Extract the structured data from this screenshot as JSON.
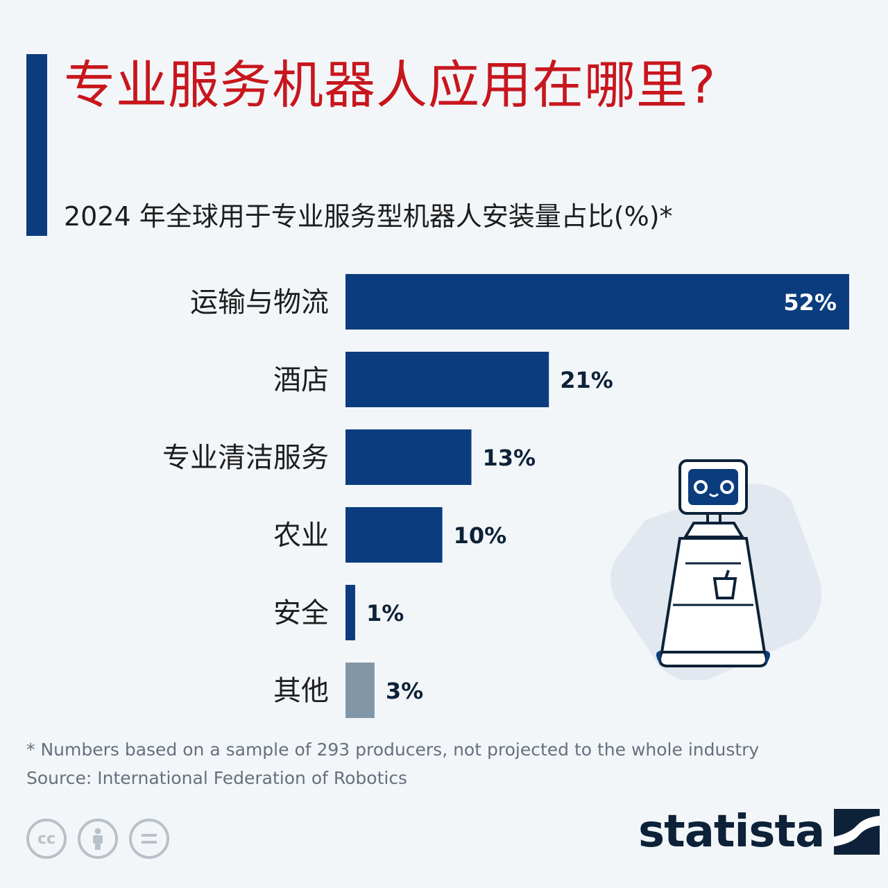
{
  "title": "专业服务机器人应用在哪里?",
  "subtitle": "2024 年全球用于专业服务型机器人安装量占比(%)*",
  "chart_data": {
    "type": "bar",
    "orientation": "horizontal",
    "categories": [
      "运输与物流",
      "酒店",
      "专业清洁服务",
      "农业",
      "安全",
      "其他"
    ],
    "values": [
      52,
      21,
      13,
      10,
      1,
      3
    ],
    "value_labels": [
      "52%",
      "21%",
      "13%",
      "10%",
      "1%",
      "3%"
    ],
    "unit": "%",
    "colors": [
      "#0b3c7e",
      "#0b3c7e",
      "#0b3c7e",
      "#0b3c7e",
      "#0b3c7e",
      "#8296a8"
    ],
    "xlim": [
      0,
      52
    ],
    "grid": false,
    "legend": "none"
  },
  "footnote": "* Numbers based on a sample of 293 producers, not projected to the whole industry",
  "source": "Source: International Federation of Robotics",
  "license_icons": [
    "cc-icon",
    "attribution-icon",
    "no-derivatives-icon"
  ],
  "brand": {
    "name": "statista",
    "color": "#0d2238"
  }
}
